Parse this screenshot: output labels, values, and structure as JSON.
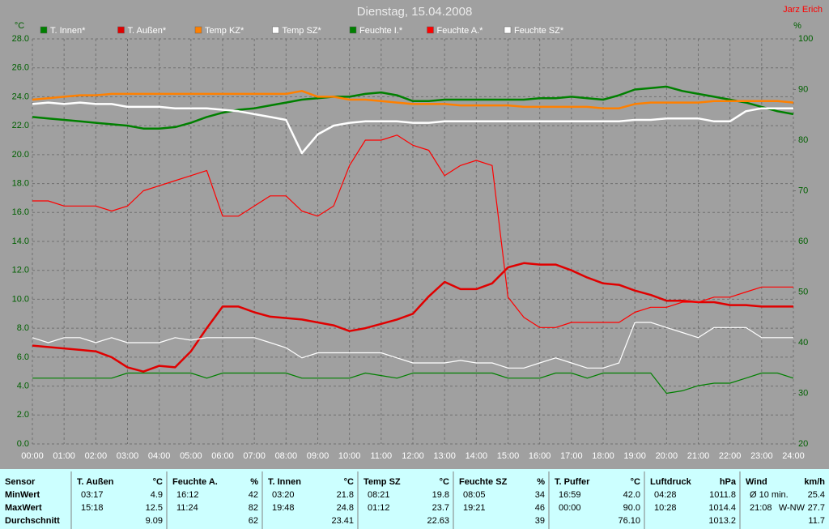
{
  "chart_data": {
    "type": "line",
    "title": "Dienstag, 15.04.2008",
    "annotation": "Jarz Erich",
    "y_label": "°C",
    "y2_label": "%",
    "grid": true,
    "xlim": [
      0,
      24
    ],
    "xticks": [
      {
        "value": 0,
        "label": "00:00"
      },
      {
        "value": 1,
        "label": "01:00"
      },
      {
        "value": 2,
        "label": "02:00"
      },
      {
        "value": 3,
        "label": "03:00"
      },
      {
        "value": 4,
        "label": "04:00"
      },
      {
        "value": 5,
        "label": "05:00"
      },
      {
        "value": 6,
        "label": "06:00"
      },
      {
        "value": 7,
        "label": "07:00"
      },
      {
        "value": 8,
        "label": "08:00"
      },
      {
        "value": 9,
        "label": "09:00"
      },
      {
        "value": 10,
        "label": "10:00"
      },
      {
        "value": 11,
        "label": "11:00"
      },
      {
        "value": 12,
        "label": "12:00"
      },
      {
        "value": 13,
        "label": "13:00"
      },
      {
        "value": 14,
        "label": "14:00"
      },
      {
        "value": 15,
        "label": "15:00"
      },
      {
        "value": 16,
        "label": "16:00"
      },
      {
        "value": 17,
        "label": "17:00"
      },
      {
        "value": 18,
        "label": "18:00"
      },
      {
        "value": 19,
        "label": "19:00"
      },
      {
        "value": 20,
        "label": "20:00"
      },
      {
        "value": 21,
        "label": "21:00"
      },
      {
        "value": 22,
        "label": "22:00"
      },
      {
        "value": 23,
        "label": "23:00"
      },
      {
        "value": 24,
        "label": "24:00"
      }
    ],
    "ylim": [
      0,
      28
    ],
    "yticks": [
      {
        "value": 0,
        "label": "0.0"
      },
      {
        "value": 2,
        "label": "2.0"
      },
      {
        "value": 4,
        "label": "4.0"
      },
      {
        "value": 6,
        "label": "6.0"
      },
      {
        "value": 8,
        "label": "8.0"
      },
      {
        "value": 10,
        "label": "10.0"
      },
      {
        "value": 12,
        "label": "12.0"
      },
      {
        "value": 14,
        "label": "14.0"
      },
      {
        "value": 16,
        "label": "16.0"
      },
      {
        "value": 18,
        "label": "18.0"
      },
      {
        "value": 20,
        "label": "20.0"
      },
      {
        "value": 22,
        "label": "22.0"
      },
      {
        "value": 24,
        "label": "24.0"
      },
      {
        "value": 26,
        "label": "26.0"
      },
      {
        "value": 28,
        "label": "28.0"
      }
    ],
    "y2lim": [
      20,
      100
    ],
    "y2ticks": [
      20,
      30,
      40,
      50,
      60,
      70,
      80,
      90,
      100
    ],
    "x": [
      0,
      0.5,
      1,
      1.5,
      2,
      2.5,
      3,
      3.5,
      4,
      4.5,
      5,
      5.5,
      6,
      6.5,
      7,
      7.5,
      8,
      8.5,
      9,
      9.5,
      10,
      10.5,
      11,
      11.5,
      12,
      12.5,
      13,
      13.5,
      14,
      14.5,
      15,
      15.5,
      16,
      16.5,
      17,
      17.5,
      18,
      18.5,
      19,
      19.5,
      20,
      20.5,
      21,
      21.5,
      22,
      22.5,
      23,
      23.5,
      24
    ],
    "series": [
      {
        "name": "T. Innen*",
        "color": "#008000",
        "line": "thick",
        "values": [
          22.6,
          22.5,
          22.4,
          22.3,
          22.2,
          22.1,
          22.0,
          21.8,
          21.8,
          21.9,
          22.2,
          22.6,
          22.9,
          23.1,
          23.2,
          23.4,
          23.6,
          23.8,
          23.9,
          24.0,
          24.0,
          24.2,
          24.3,
          24.1,
          23.7,
          23.7,
          23.8,
          23.8,
          23.8,
          23.8,
          23.8,
          23.8,
          23.9,
          23.9,
          24.0,
          23.9,
          23.8,
          24.1,
          24.5,
          24.6,
          24.7,
          24.4,
          24.2,
          24.0,
          23.8,
          23.6,
          23.3,
          23.0,
          22.8
        ]
      },
      {
        "name": "T. Außen*",
        "color": "#e00000",
        "line": "thick",
        "values": [
          6.8,
          6.7,
          6.6,
          6.5,
          6.4,
          6.0,
          5.3,
          5.0,
          5.4,
          5.3,
          6.4,
          8.0,
          9.5,
          9.5,
          9.1,
          8.8,
          8.7,
          8.6,
          8.4,
          8.2,
          7.8,
          8.0,
          8.3,
          8.6,
          9.0,
          10.2,
          11.2,
          10.7,
          10.7,
          11.1,
          12.2,
          12.5,
          12.4,
          12.4,
          12.0,
          11.5,
          11.1,
          11.0,
          10.6,
          10.3,
          9.9,
          9.9,
          9.8,
          9.8,
          9.6,
          9.6,
          9.5,
          9.5,
          9.5
        ]
      },
      {
        "name": "Temp KZ*",
        "color": "#ff8000",
        "line": "thick",
        "values": [
          23.8,
          23.9,
          24.0,
          24.1,
          24.1,
          24.2,
          24.2,
          24.2,
          24.2,
          24.2,
          24.2,
          24.2,
          24.2,
          24.2,
          24.2,
          24.2,
          24.2,
          24.4,
          24.0,
          24.0,
          23.8,
          23.8,
          23.7,
          23.6,
          23.5,
          23.5,
          23.5,
          23.4,
          23.4,
          23.4,
          23.4,
          23.3,
          23.3,
          23.3,
          23.3,
          23.3,
          23.2,
          23.2,
          23.5,
          23.6,
          23.6,
          23.6,
          23.6,
          23.7,
          23.7,
          23.7,
          23.7,
          23.7,
          23.6
        ]
      },
      {
        "name": "Temp SZ*",
        "color": "#ffffff",
        "line": "thick",
        "values": [
          23.5,
          23.6,
          23.5,
          23.6,
          23.5,
          23.5,
          23.3,
          23.3,
          23.3,
          23.2,
          23.2,
          23.2,
          23.1,
          23.0,
          22.8,
          22.6,
          22.4,
          20.1,
          21.4,
          22.0,
          22.2,
          22.3,
          22.3,
          22.3,
          22.2,
          22.2,
          22.3,
          22.3,
          22.3,
          22.3,
          22.3,
          22.3,
          22.3,
          22.3,
          22.3,
          22.3,
          22.3,
          22.3,
          22.4,
          22.4,
          22.5,
          22.5,
          22.5,
          22.3,
          22.3,
          23.0,
          23.2,
          23.2,
          23.2
        ]
      },
      {
        "name": "Feuchte I.*",
        "color": "#008000",
        "line": "thin",
        "axis": "y2",
        "values": [
          33,
          33,
          33,
          33,
          33,
          33,
          34,
          34,
          34,
          34,
          34,
          33,
          34,
          34,
          34,
          34,
          34,
          33,
          33,
          33,
          33,
          34,
          33.5,
          33,
          34,
          34,
          34,
          34,
          34,
          34,
          33,
          33,
          33,
          34,
          34,
          33,
          34,
          34,
          34,
          34,
          30,
          30.5,
          31.5,
          32,
          32,
          33,
          34,
          34,
          33
        ]
      },
      {
        "name": "Feuchte A.*",
        "color": "#ff0000",
        "line": "thin",
        "axis": "y2",
        "values": [
          68,
          68,
          67,
          67,
          67,
          66,
          67,
          70,
          71,
          72,
          73,
          74,
          65,
          65,
          67,
          69,
          69,
          66,
          65,
          67,
          75,
          80,
          80,
          81,
          79,
          78,
          73,
          75,
          76,
          75,
          49,
          45,
          43,
          43,
          44,
          44,
          44,
          44,
          46,
          47,
          47,
          48,
          48,
          49,
          49,
          50,
          51,
          51,
          51
        ]
      },
      {
        "name": "Feuchte SZ*",
        "color": "#ffffff",
        "line": "thin",
        "axis": "y2",
        "values": [
          41,
          40,
          41,
          41,
          40,
          41,
          40,
          40,
          40,
          41,
          40.5,
          41,
          41,
          41,
          41,
          40,
          39,
          37,
          38,
          38,
          38,
          38,
          38,
          37,
          36,
          36,
          36,
          36.5,
          36,
          36,
          35,
          35,
          36,
          37,
          36,
          35,
          35,
          36,
          44,
          44,
          43,
          42,
          41,
          43,
          43,
          43,
          41,
          41,
          41
        ]
      }
    ]
  },
  "table": {
    "header": "Sensor",
    "row_labels": [
      "MinWert",
      "MaxWert",
      "Durchschnitt"
    ],
    "columns": [
      {
        "name": "T. Außen",
        "unit": "°C",
        "rows": [
          [
            "03:17",
            "4.9"
          ],
          [
            "15:18",
            "12.5"
          ],
          [
            "9.09"
          ]
        ]
      },
      {
        "name": "Feuchte A.",
        "unit": "%",
        "rows": [
          [
            "16:12",
            "42"
          ],
          [
            "11:24",
            "82"
          ],
          [
            "62"
          ]
        ]
      },
      {
        "name": "T. Innen",
        "unit": "°C",
        "rows": [
          [
            "03:20",
            "21.8"
          ],
          [
            "19:48",
            "24.8"
          ],
          [
            "23.41"
          ]
        ]
      },
      {
        "name": "Temp SZ",
        "unit": "°C",
        "rows": [
          [
            "08:21",
            "19.8"
          ],
          [
            "01:12",
            "23.7"
          ],
          [
            "22.63"
          ]
        ]
      },
      {
        "name": "Feuchte SZ",
        "unit": "%",
        "rows": [
          [
            "08:05",
            "34"
          ],
          [
            "19:21",
            "46"
          ],
          [
            "39"
          ]
        ]
      },
      {
        "name": "T. Puffer",
        "unit": "°C",
        "rows": [
          [
            "16:59",
            "42.0"
          ],
          [
            "00:00",
            "90.0"
          ],
          [
            "76.10"
          ]
        ]
      },
      {
        "name": "Luftdruck",
        "unit": "hPa",
        "rows": [
          [
            "04:28",
            "1011.8"
          ],
          [
            "10:28",
            "1014.4"
          ],
          [
            "1013.2"
          ]
        ]
      },
      {
        "name": "Wind",
        "unit": "km/h",
        "rows": [
          [
            "Ø 10 min.",
            "25.4"
          ],
          [
            "21:08",
            "W-NW",
            "27.7"
          ],
          [
            "11.7"
          ]
        ]
      }
    ]
  }
}
